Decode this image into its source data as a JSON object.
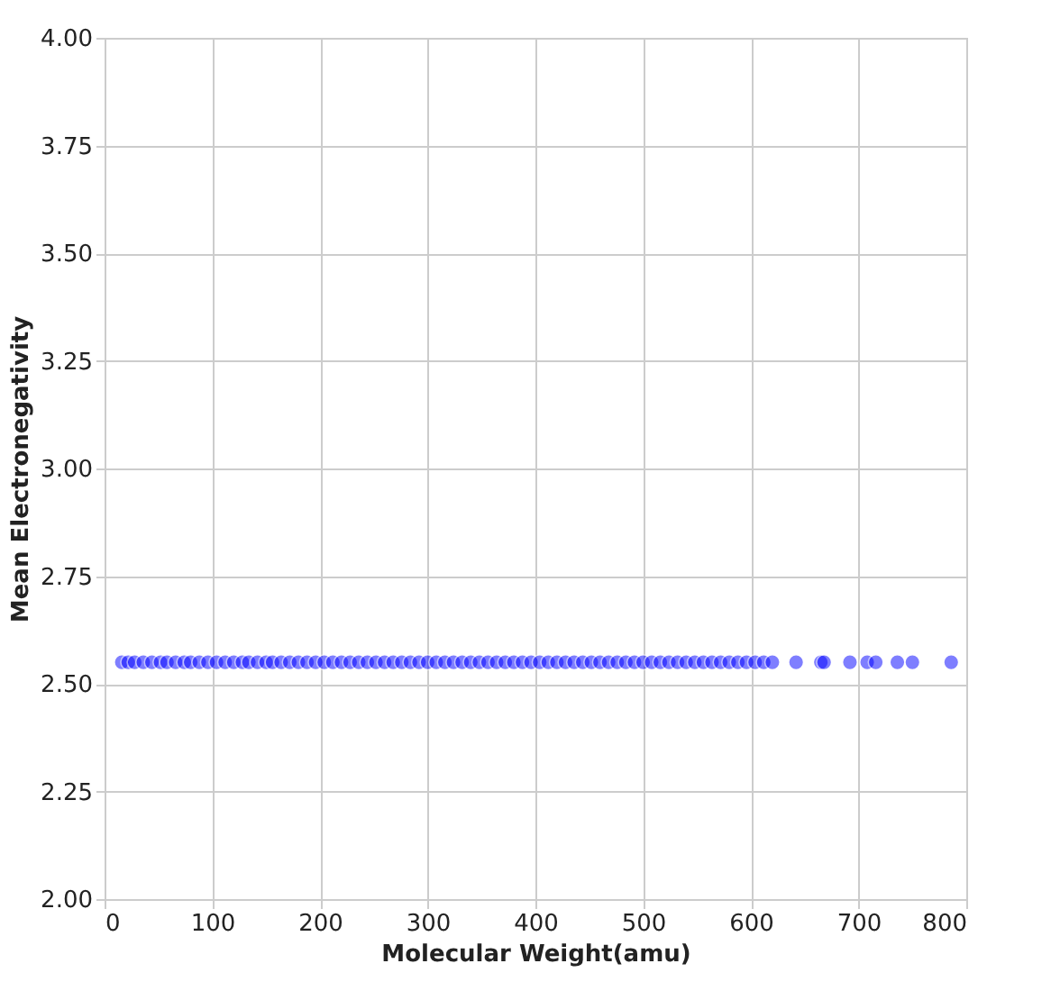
{
  "chart_data": {
    "type": "scatter",
    "xlabel": "Molecular Weight(amu)",
    "ylabel": "Mean Electronegativity",
    "x": [
      16,
      22,
      28,
      36,
      44,
      52,
      58,
      66,
      74,
      80,
      88,
      96,
      104,
      112,
      120,
      128,
      134,
      142,
      150,
      156,
      164,
      172,
      180,
      188,
      196,
      204,
      212,
      220,
      228,
      236,
      244,
      252,
      260,
      268,
      276,
      284,
      292,
      300,
      308,
      316,
      324,
      332,
      340,
      348,
      356,
      364,
      372,
      380,
      388,
      396,
      404,
      412,
      420,
      428,
      436,
      444,
      452,
      460,
      468,
      476,
      484,
      492,
      500,
      508,
      516,
      524,
      532,
      540,
      548,
      556,
      564,
      572,
      580,
      588,
      596,
      604,
      612,
      620,
      642,
      665,
      668,
      692,
      708,
      716,
      736,
      750,
      786
    ],
    "values": [
      2.55,
      2.55,
      2.55,
      2.55,
      2.55,
      2.55,
      2.55,
      2.55,
      2.55,
      2.55,
      2.55,
      2.55,
      2.55,
      2.55,
      2.55,
      2.55,
      2.55,
      2.55,
      2.55,
      2.55,
      2.55,
      2.55,
      2.55,
      2.55,
      2.55,
      2.55,
      2.55,
      2.55,
      2.55,
      2.55,
      2.55,
      2.55,
      2.55,
      2.55,
      2.55,
      2.55,
      2.55,
      2.55,
      2.55,
      2.55,
      2.55,
      2.55,
      2.55,
      2.55,
      2.55,
      2.55,
      2.55,
      2.55,
      2.55,
      2.55,
      2.55,
      2.55,
      2.55,
      2.55,
      2.55,
      2.55,
      2.55,
      2.55,
      2.55,
      2.55,
      2.55,
      2.55,
      2.55,
      2.55,
      2.55,
      2.55,
      2.55,
      2.55,
      2.55,
      2.55,
      2.55,
      2.55,
      2.55,
      2.55,
      2.55,
      2.55,
      2.55,
      2.55,
      2.55,
      2.55,
      2.55,
      2.55,
      2.55,
      2.55,
      2.55,
      2.55,
      2.55
    ],
    "color": "#0000ff",
    "marker": "circle",
    "xlim": [
      0,
      800
    ],
    "xticks": [
      0,
      100,
      200,
      300,
      400,
      500,
      600,
      700,
      800
    ],
    "ylim": [
      2.0,
      4.0
    ],
    "yticks": [
      {
        "value": 2.0,
        "label": "2.00"
      },
      {
        "value": 2.25,
        "label": "2.25"
      },
      {
        "value": 2.5,
        "label": "2.50"
      },
      {
        "value": 2.75,
        "label": "2.75"
      },
      {
        "value": 3.0,
        "label": "3.00"
      },
      {
        "value": 3.25,
        "label": "3.25"
      },
      {
        "value": 3.5,
        "label": "3.50"
      },
      {
        "value": 3.75,
        "label": "3.75"
      },
      {
        "value": 4.0,
        "label": "4.00"
      }
    ],
    "grid": true
  }
}
